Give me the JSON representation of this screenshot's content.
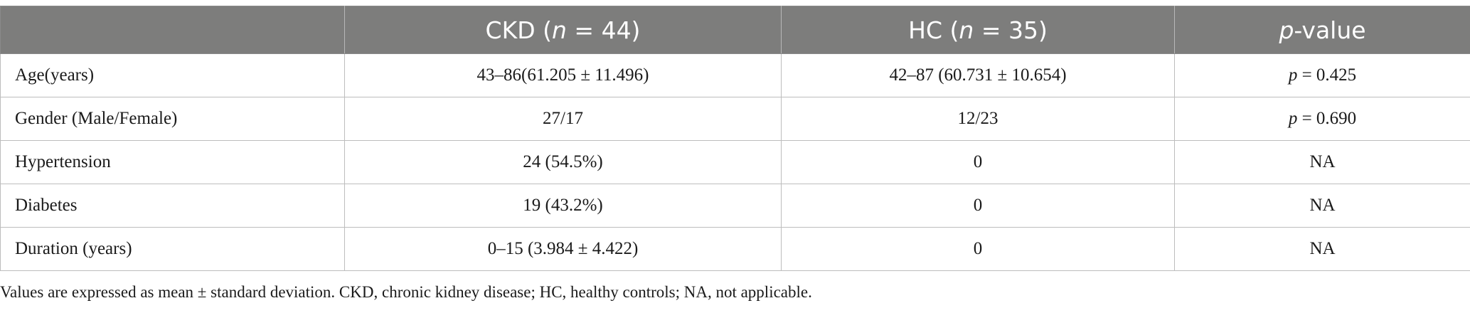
{
  "table": {
    "headers": [
      {
        "prefix": "",
        "text": "",
        "italic": "",
        "suffix": ""
      },
      {
        "prefix": "CKD (",
        "italic": "n",
        "suffix": " = 44)"
      },
      {
        "prefix": "HC (",
        "italic": "n",
        "suffix": " = 35)"
      },
      {
        "prefix": "",
        "italic": "p",
        "suffix": "-value"
      }
    ],
    "rows": [
      {
        "label": "Age(years)",
        "ckd": "43–86(61.205 ± 11.496)",
        "hc": "42–87 (60.731 ± 10.654)",
        "p_italic": "p",
        "p_value": " = 0.425"
      },
      {
        "label": "Gender (Male/Female)",
        "ckd": "27/17",
        "hc": "12/23",
        "p_italic": "p",
        "p_value": " = 0.690"
      },
      {
        "label": "Hypertension",
        "ckd": "24 (54.5%)",
        "hc": "0",
        "p_italic": "",
        "p_value": "NA"
      },
      {
        "label": "Diabetes",
        "ckd": "19 (43.2%)",
        "hc": "0",
        "p_italic": "",
        "p_value": "NA"
      },
      {
        "label": "Duration (years)",
        "ckd": "0–15 (3.984 ± 4.422)",
        "hc": "0",
        "p_italic": "",
        "p_value": "NA"
      }
    ]
  },
  "footnote": "Values are expressed as mean ± standard deviation. CKD, chronic kidney disease; HC, healthy controls; NA, not applicable.",
  "colors": {
    "header_bg": "#7d7d7c",
    "header_text": "#ffffff",
    "body_text": "#1a1a1a",
    "grid": "#bdbdbd"
  }
}
